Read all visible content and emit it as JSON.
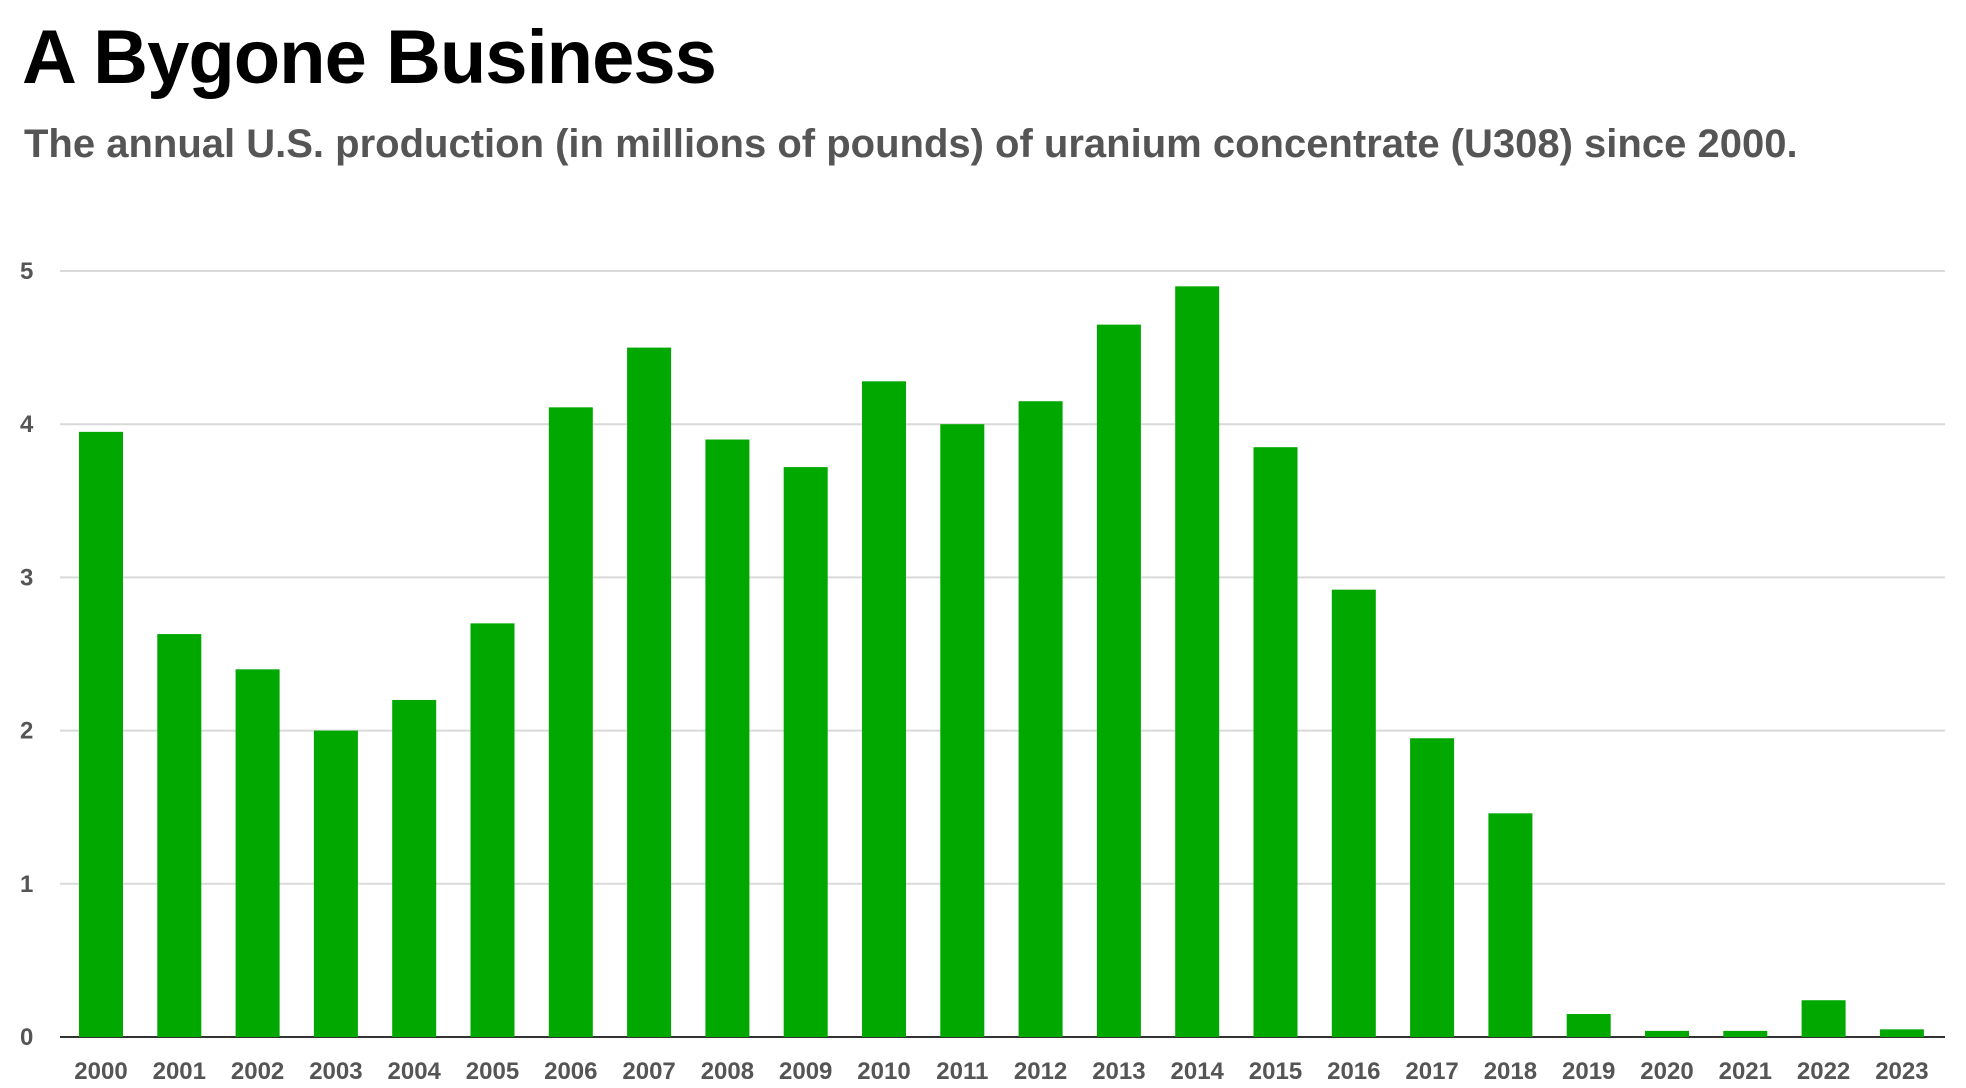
{
  "chart_data": {
    "type": "bar",
    "title": "A Bygone Business",
    "subtitle": "The annual U.S. production (in millions of pounds) of uranium concentrate (U308) since 2000.",
    "xlabel": "",
    "ylabel": "",
    "categories": [
      "2000",
      "2001",
      "2002",
      "2003",
      "2004",
      "2005",
      "2006",
      "2007",
      "2008",
      "2009",
      "2010",
      "2011",
      "2012",
      "2013",
      "2014",
      "2015",
      "2016",
      "2017",
      "2018",
      "2019",
      "2020",
      "2021",
      "2022",
      "2023"
    ],
    "values": [
      3.95,
      2.63,
      2.4,
      2.0,
      2.2,
      2.7,
      4.11,
      4.5,
      3.9,
      3.72,
      4.28,
      4.0,
      4.15,
      4.65,
      4.9,
      3.85,
      2.92,
      1.95,
      1.46,
      0.15,
      0.04,
      0.04,
      0.24,
      0.05
    ],
    "ylim": [
      0,
      5
    ],
    "yticks": [
      0,
      1,
      2,
      3,
      4,
      5
    ],
    "grid": true,
    "legend": "none",
    "bar_color": "#00a800",
    "grid_color": "#d9d9d9",
    "axis_color": "#333333"
  }
}
